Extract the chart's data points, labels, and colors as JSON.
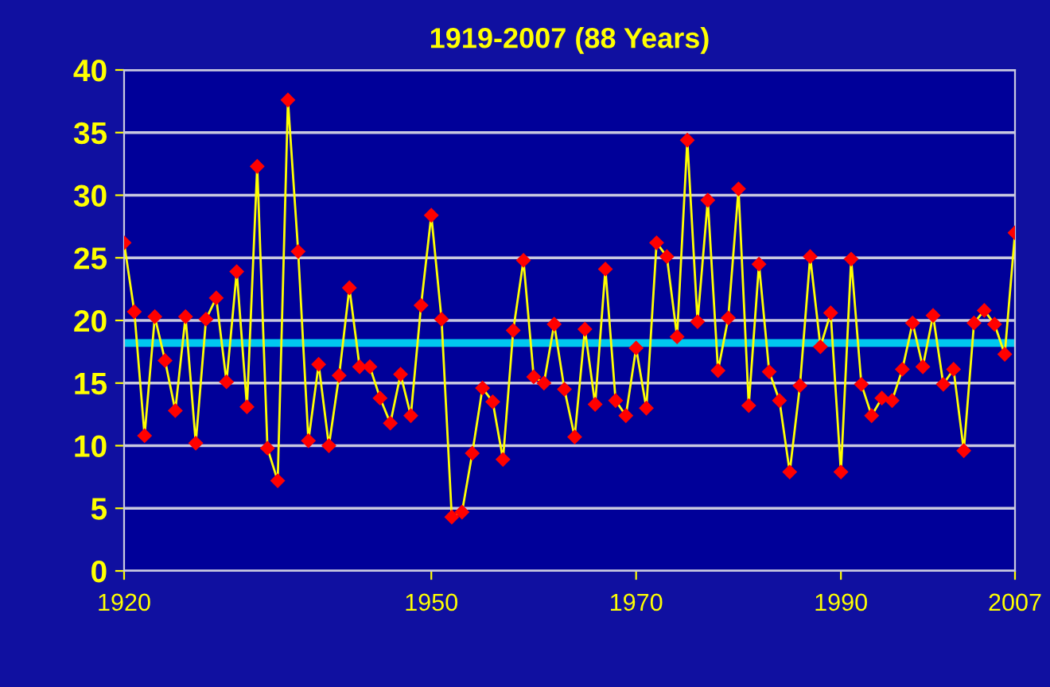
{
  "chart_data": {
    "type": "line",
    "title": "1919-2007 (88 Years)",
    "x": [
      1920,
      1921,
      1922,
      1923,
      1924,
      1925,
      1926,
      1927,
      1928,
      1929,
      1930,
      1931,
      1932,
      1933,
      1934,
      1935,
      1936,
      1937,
      1938,
      1939,
      1940,
      1941,
      1942,
      1943,
      1944,
      1945,
      1946,
      1947,
      1948,
      1949,
      1950,
      1951,
      1952,
      1953,
      1954,
      1955,
      1956,
      1957,
      1958,
      1959,
      1960,
      1961,
      1962,
      1963,
      1964,
      1965,
      1966,
      1967,
      1968,
      1969,
      1970,
      1971,
      1972,
      1973,
      1974,
      1975,
      1976,
      1977,
      1978,
      1979,
      1980,
      1981,
      1982,
      1983,
      1984,
      1985,
      1986,
      1987,
      1988,
      1989,
      1990,
      1991,
      1992,
      1993,
      1994,
      1995,
      1996,
      1997,
      1998,
      1999,
      2000,
      2001,
      2002,
      2003,
      2004,
      2005,
      2006,
      2007
    ],
    "series": [
      {
        "color": "#ffff00",
        "values": [
          26.2,
          20.7,
          10.8,
          20.3,
          16.8,
          12.8,
          20.3,
          10.2,
          20.1,
          21.8,
          15.1,
          23.9,
          13.1,
          32.3,
          9.8,
          7.2,
          37.6,
          25.5,
          10.4,
          16.5,
          10.0,
          15.6,
          22.6,
          16.3,
          16.3,
          13.8,
          11.8,
          15.7,
          12.4,
          21.2,
          28.4,
          20.1,
          4.3,
          4.7,
          9.4,
          14.6,
          13.5,
          8.9,
          19.2,
          24.8,
          15.5,
          15.0,
          19.7,
          14.5,
          10.7,
          19.3,
          13.3,
          24.1,
          13.6,
          12.4,
          17.8,
          13.0,
          26.2,
          25.1,
          18.7,
          34.4,
          19.9,
          29.6,
          16.0,
          20.2,
          30.5,
          13.2,
          24.5,
          15.9,
          13.6,
          7.9,
          14.8,
          25.1,
          17.9,
          20.6,
          7.9,
          24.9,
          14.9,
          12.4,
          13.8,
          13.6,
          16.1,
          19.8,
          16.3,
          20.4,
          14.9,
          16.1,
          9.6,
          19.8,
          20.8,
          19.7,
          17.3,
          27.0
        ]
      }
    ],
    "xlim": [
      1920,
      2007
    ],
    "xticks": [
      1920,
      1950,
      1970,
      1990,
      2007
    ],
    "ylim": [
      0,
      40
    ],
    "yticks": [
      0,
      5,
      10,
      15,
      20,
      25,
      30,
      35,
      40
    ],
    "grid": "y",
    "marker": "diamond",
    "line_style": "solid",
    "ref_lines": [
      {
        "axis": "y",
        "value": 18.2,
        "color": "#00c8f0"
      }
    ]
  }
}
